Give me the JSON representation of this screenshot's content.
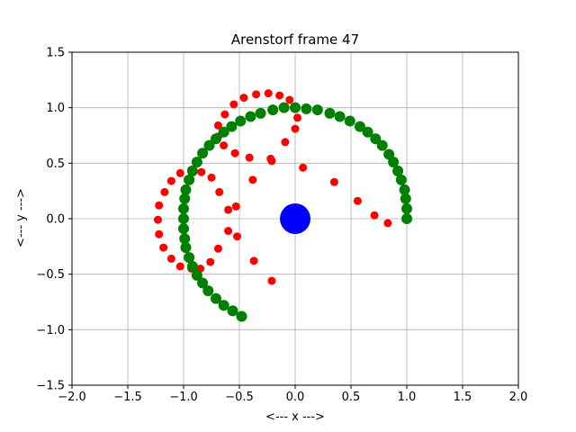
{
  "chart_data": {
    "type": "scatter",
    "title": "Arenstorf frame 47",
    "xlabel": "<---  x  --->",
    "ylabel": "<---  y  --->",
    "xlim": [
      -2.0,
      2.0
    ],
    "ylim": [
      -1.5,
      1.5
    ],
    "xticks": [
      -2.0,
      -1.5,
      -1.0,
      -0.5,
      0.0,
      0.5,
      1.0,
      1.5,
      2.0
    ],
    "yticks": [
      -1.5,
      -1.0,
      -0.5,
      0.0,
      0.5,
      1.0,
      1.5
    ],
    "xtick_labels": [
      "−2.0",
      "−1.5",
      "−1.0",
      "−0.5",
      "0.0",
      "0.5",
      "1.0",
      "1.5",
      "2.0"
    ],
    "ytick_labels": [
      "−1.5",
      "−1.0",
      "−0.5",
      "0.0",
      "0.5",
      "1.0",
      "1.5"
    ],
    "grid": true,
    "series": [
      {
        "color": "#ff0000",
        "marker": "small-circle",
        "points": [
          [
            1.0,
            0.0
          ],
          [
            0.83,
            -0.04
          ],
          [
            0.71,
            0.03
          ],
          [
            0.56,
            0.16
          ],
          [
            0.35,
            0.33
          ],
          [
            0.07,
            0.46
          ],
          [
            -0.21,
            0.52
          ],
          [
            -0.41,
            0.55
          ],
          [
            -0.54,
            0.59
          ],
          [
            -0.64,
            0.66
          ],
          [
            -0.69,
            0.74
          ],
          [
            -0.69,
            0.84
          ],
          [
            -0.63,
            0.94
          ],
          [
            -0.55,
            1.03
          ],
          [
            -0.46,
            1.09
          ],
          [
            -0.35,
            1.12
          ],
          [
            -0.24,
            1.13
          ],
          [
            -0.14,
            1.11
          ],
          [
            -0.05,
            1.07
          ],
          [
            0.01,
            1.0
          ],
          [
            0.02,
            0.91
          ],
          [
            0.0,
            0.81
          ],
          [
            -0.09,
            0.69
          ],
          [
            -0.22,
            0.54
          ],
          [
            -0.38,
            0.35
          ],
          [
            -0.53,
            0.11
          ],
          [
            -0.6,
            -0.11
          ],
          [
            -0.52,
            -0.16
          ],
          [
            -0.37,
            -0.38
          ],
          [
            -0.21,
            -0.56
          ],
          [
            -0.69,
            -0.27
          ],
          [
            -0.76,
            -0.39
          ],
          [
            -0.85,
            -0.45
          ],
          [
            -0.93,
            -0.45
          ],
          [
            -1.03,
            -0.43
          ],
          [
            -1.11,
            -0.36
          ],
          [
            -1.18,
            -0.26
          ],
          [
            -1.22,
            -0.14
          ],
          [
            -1.23,
            -0.01
          ],
          [
            -1.22,
            0.12
          ],
          [
            -1.17,
            0.24
          ],
          [
            -1.11,
            0.34
          ],
          [
            -1.03,
            0.41
          ],
          [
            -0.93,
            0.44
          ],
          [
            -0.84,
            0.42
          ],
          [
            -0.75,
            0.37
          ],
          [
            -0.68,
            0.24
          ],
          [
            -0.6,
            0.08
          ]
        ]
      },
      {
        "color": "#008000",
        "marker": "circle",
        "points": [
          [
            1.0,
            0.0
          ],
          [
            1.0,
            0.09
          ],
          [
            0.99,
            0.18
          ],
          [
            0.98,
            0.26
          ],
          [
            0.95,
            0.35
          ],
          [
            0.92,
            0.43
          ],
          [
            0.88,
            0.51
          ],
          [
            0.84,
            0.58
          ],
          [
            0.78,
            0.66
          ],
          [
            0.72,
            0.72
          ],
          [
            0.65,
            0.78
          ],
          [
            0.58,
            0.83
          ],
          [
            0.49,
            0.88
          ],
          [
            0.4,
            0.92
          ],
          [
            0.31,
            0.95
          ],
          [
            0.2,
            0.98
          ],
          [
            0.1,
            0.99
          ],
          [
            0.0,
            1.0
          ],
          [
            -0.1,
            1.0
          ],
          [
            -0.2,
            0.98
          ],
          [
            -0.31,
            0.95
          ],
          [
            -0.4,
            0.92
          ],
          [
            -0.49,
            0.88
          ],
          [
            -0.57,
            0.83
          ],
          [
            -0.64,
            0.78
          ],
          [
            -0.71,
            0.72
          ],
          [
            -0.77,
            0.66
          ],
          [
            -0.83,
            0.59
          ],
          [
            -0.88,
            0.51
          ],
          [
            -0.92,
            0.43
          ],
          [
            -0.95,
            0.35
          ],
          [
            -0.98,
            0.26
          ],
          [
            -0.99,
            0.18
          ],
          [
            -1.0,
            0.09
          ],
          [
            -1.0,
            0.0
          ],
          [
            -1.0,
            -0.09
          ],
          [
            -0.99,
            -0.18
          ],
          [
            -0.98,
            -0.26
          ],
          [
            -0.95,
            -0.35
          ],
          [
            -0.92,
            -0.43
          ],
          [
            -0.88,
            -0.51
          ],
          [
            -0.83,
            -0.58
          ],
          [
            -0.78,
            -0.65
          ],
          [
            -0.71,
            -0.72
          ],
          [
            -0.64,
            -0.78
          ],
          [
            -0.56,
            -0.83
          ],
          [
            -0.48,
            -0.88
          ]
        ]
      },
      {
        "color": "#0000ff",
        "marker": "large-circle",
        "points": [
          [
            0.0,
            0.0
          ]
        ]
      }
    ]
  }
}
